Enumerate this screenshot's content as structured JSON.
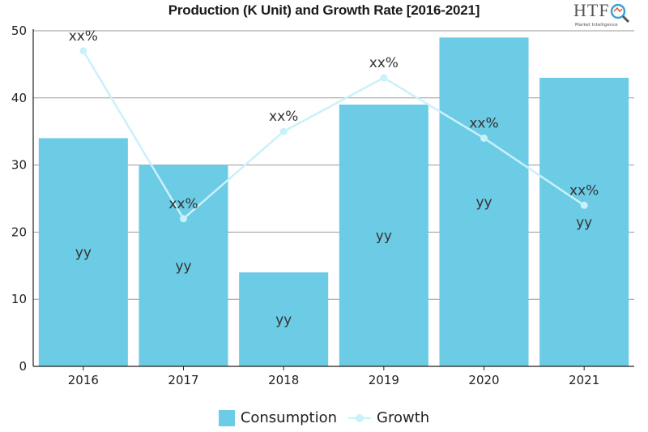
{
  "chart_data": {
    "type": "bar",
    "title": "Production (K Unit) and Growth Rate [2016-2021]",
    "categories": [
      "2016",
      "2017",
      "2018",
      "2019",
      "2020",
      "2021"
    ],
    "ylim": [
      0,
      50
    ],
    "yticks": [
      "0",
      "10",
      "20",
      "30",
      "40",
      "50"
    ],
    "grid": true,
    "legend_position": "bottom",
    "series": [
      {
        "name": "Consumption",
        "kind": "bar",
        "color": "#6ccbe5",
        "values": [
          34,
          30,
          14,
          39,
          49,
          43
        ],
        "data_labels": [
          "yy",
          "yy",
          "yy",
          "yy",
          "yy",
          "yy"
        ]
      },
      {
        "name": "Growth",
        "kind": "line",
        "color": "#c9f1fa",
        "values": [
          47,
          22,
          35,
          43,
          34,
          24
        ],
        "data_labels": [
          "xx%",
          "xx%",
          "xx%",
          "xx%",
          "xx%",
          "xx%"
        ]
      }
    ]
  },
  "logo": {
    "text": "HTF",
    "subtext": "Market Intelligence"
  }
}
